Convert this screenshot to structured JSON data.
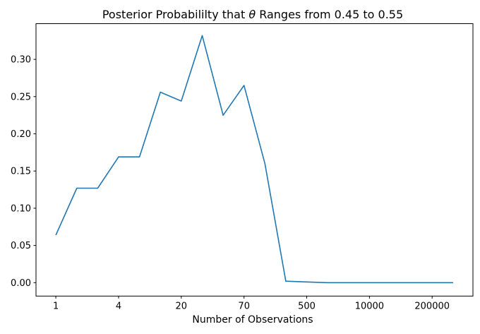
{
  "figure": {
    "title_prefix": "Posterior Probabililty that ",
    "title_theta": "θ",
    "title_suffix": " Ranges from 0.45 to 0.55",
    "xlabel": "Number of Observations"
  },
  "colors": {
    "line": "#1f77b4",
    "axis": "#000000",
    "text": "#000000",
    "background": "#ffffff"
  },
  "chart_data": {
    "type": "line",
    "title": "Posterior Probabililty that θ Ranges from 0.45 to 0.55",
    "xlabel": "Number of Observations",
    "ylabel": "",
    "x": [
      0,
      1,
      2,
      3,
      4,
      5,
      6,
      7,
      8,
      9,
      10,
      11,
      12,
      13,
      14,
      15,
      16,
      17,
      18,
      19
    ],
    "values": [
      0.064,
      0.127,
      0.127,
      0.169,
      0.169,
      0.256,
      0.244,
      0.332,
      0.225,
      0.265,
      0.16,
      0.002,
      0.001,
      0.0,
      0.0,
      0.0,
      0.0,
      0.0,
      0.0,
      0.0
    ],
    "xticks": {
      "positions": [
        0,
        3,
        6,
        9,
        12,
        15,
        18
      ],
      "labels": [
        "1",
        "4",
        "20",
        "70",
        "500",
        "10000",
        "200000"
      ]
    },
    "yticks": {
      "values": [
        0.0,
        0.05,
        0.1,
        0.15,
        0.2,
        0.25,
        0.3
      ],
      "labels": [
        "0.00",
        "0.05",
        "0.10",
        "0.15",
        "0.20",
        "0.25",
        "0.30"
      ]
    },
    "xlim": [
      -0.95,
      19.95
    ],
    "ylim": [
      -0.018,
      0.348
    ],
    "grid": false,
    "legend": "none",
    "line_color": "#1f77b4"
  }
}
